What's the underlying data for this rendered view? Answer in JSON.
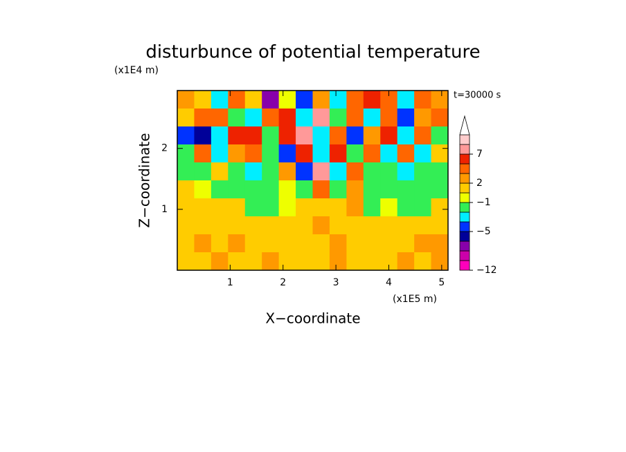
{
  "chart_data": {
    "type": "contour",
    "title": "disturbunce of potential temperature",
    "x_label": "X−coordinate",
    "y_label": "Z−coordinate",
    "x_unit": "(x1E5 m)",
    "y_unit": "(x1E4 m)",
    "annotation": "t=30000 s",
    "xlim": [
      0,
      5.12
    ],
    "ylim": [
      0,
      2.95
    ],
    "xticks": [
      1,
      2,
      3,
      4,
      5
    ],
    "yticks": [
      1,
      2
    ],
    "field": [
      [
        2,
        1,
        -3,
        3,
        0,
        -8,
        -1,
        -5,
        2,
        -4,
        3,
        5,
        3,
        -3,
        4,
        2
      ],
      [
        0,
        4,
        3,
        -2,
        -4,
        3,
        5,
        -3,
        7,
        -2,
        4,
        -4,
        3,
        -5,
        2,
        3
      ],
      [
        -5,
        -6,
        -3,
        5,
        6,
        -2,
        6,
        8,
        -4,
        3,
        -5,
        2,
        5,
        -4,
        3,
        -2
      ],
      [
        -2,
        3,
        -4,
        2,
        3,
        -2,
        -5,
        5,
        -3,
        6,
        -2,
        4,
        -4,
        3,
        -3,
        0
      ],
      [
        -2,
        -2,
        0,
        -2,
        -4,
        -2,
        2,
        -5,
        7,
        -3,
        3,
        -2,
        -2,
        -3,
        -2,
        -2
      ],
      [
        0,
        -1,
        -2,
        -2,
        -2,
        -2,
        -1,
        -2,
        3,
        -2,
        2,
        -2,
        -2,
        -2,
        -2,
        -2
      ],
      [
        0,
        0,
        1,
        0,
        -2,
        -2,
        -1,
        0,
        1,
        0,
        2,
        -2,
        -1,
        -2,
        -2,
        0
      ],
      [
        1,
        1,
        1,
        1,
        1,
        0,
        0,
        1,
        2,
        1,
        0,
        0,
        1,
        0,
        1,
        1
      ],
      [
        1,
        2,
        1,
        2,
        1,
        1,
        1,
        0,
        1,
        2,
        1,
        1,
        1,
        1,
        2,
        2
      ],
      [
        1,
        1,
        2,
        1,
        1,
        2,
        1,
        1,
        0,
        2,
        1,
        1,
        1,
        2,
        1,
        2
      ]
    ],
    "colorbar": {
      "levels": [
        -12,
        -10,
        -8,
        -6,
        -5,
        -4,
        -2,
        -1,
        0,
        2,
        3,
        5,
        7,
        9,
        12
      ],
      "colors": [
        "#ff00bb",
        "#cc00aa",
        "#8800aa",
        "#000099",
        "#0033ff",
        "#00eeff",
        "#33ee55",
        "#eeff00",
        "#ffcc00",
        "#ff9900",
        "#ff6600",
        "#ee2200",
        "#ff9999",
        "#ffcccc"
      ],
      "over_color": "#ffffff",
      "ticks": [
        {
          "value": -12,
          "label": "−12"
        },
        {
          "value": -5,
          "label": "−5"
        },
        {
          "value": -1,
          "label": "−1"
        },
        2,
        7
      ]
    }
  }
}
